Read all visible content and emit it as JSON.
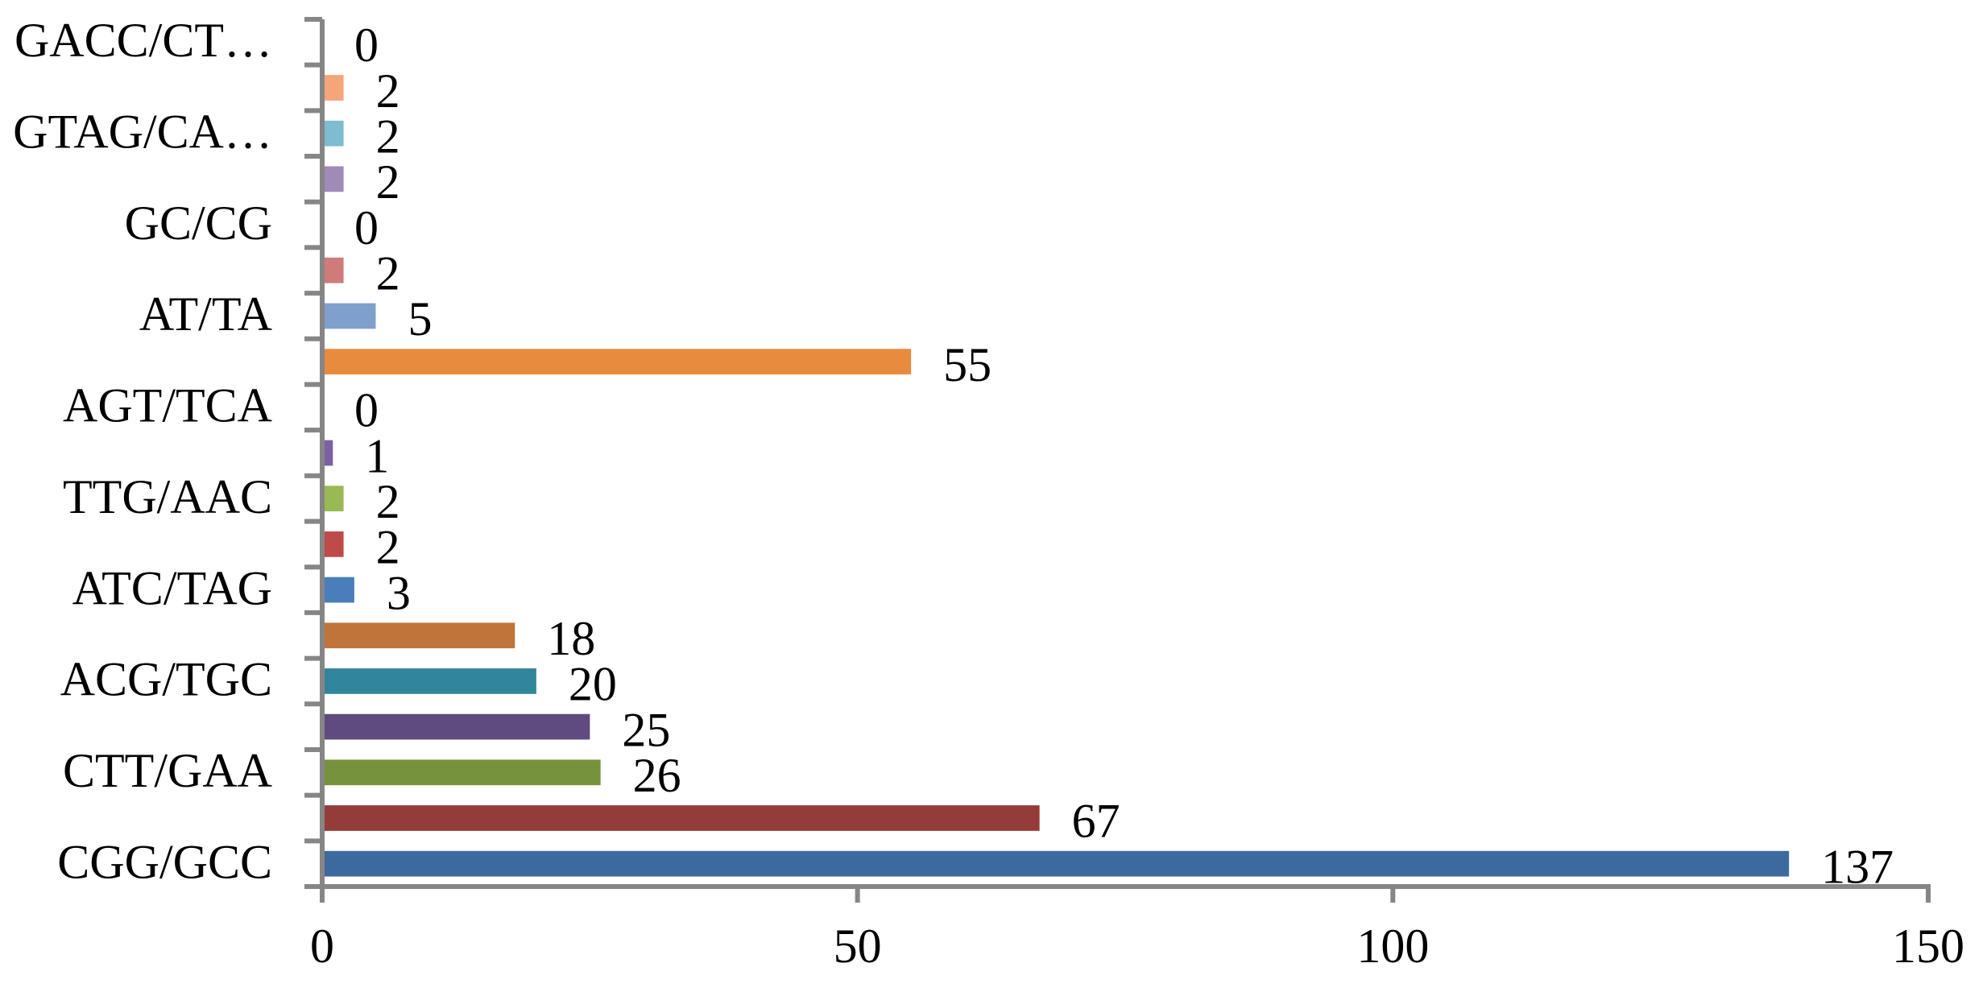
{
  "chart_data": {
    "type": "barh",
    "categories": [
      "CGG/GCC",
      null,
      "CTT/GAA",
      null,
      "ACG/TGC",
      null,
      "ATC/TAG",
      null,
      "TTG/AAC",
      null,
      "AGT/TCA",
      null,
      "AT/TA",
      null,
      "GC/CG",
      null,
      "GTAG/CA…",
      null,
      "GACC/CT…"
    ],
    "values": [
      137,
      67,
      26,
      25,
      20,
      18,
      3,
      2,
      2,
      1,
      0,
      55,
      5,
      2,
      0,
      2,
      2,
      2,
      0
    ],
    "colors": [
      "#3d6a9e",
      "#943c3a",
      "#76923c",
      "#5f4b80",
      "#31859c",
      "#c0743a",
      "#4a7ebb",
      "#be4b48",
      "#98b954",
      "#7d60a0",
      "#f79646",
      "#e88b3f",
      "#7f9fcd",
      "#cf7b79",
      "#b3d47d",
      "#9f8ab8",
      "#7dbcd1",
      "#f4a57a",
      "#4f81bd"
    ],
    "xlim": [
      0,
      150
    ],
    "xticks": [
      0,
      50,
      100,
      150
    ]
  }
}
